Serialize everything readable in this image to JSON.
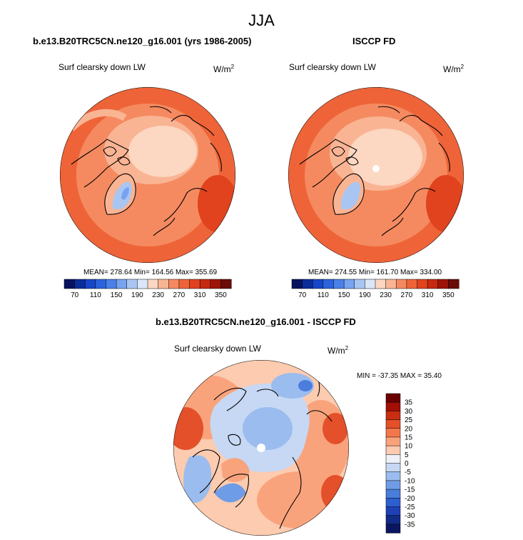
{
  "figure_title": "JJA",
  "panels": [
    {
      "title": "b.e13.B20TRC5CN.ne120_g16.001 (yrs 1986-2005)",
      "variable": "Surf clearsky down LW",
      "units": "W/m",
      "units_exp": "2",
      "stats": "MEAN= 278.64  Min= 164.56  Max= 355.69",
      "colorbar_ticks": [
        "70",
        "110",
        "150",
        "190",
        "230",
        "270",
        "310",
        "350"
      ]
    },
    {
      "title": "ISCCP FD",
      "variable": "Surf clearsky down LW",
      "units": "W/m",
      "units_exp": "2",
      "stats": "MEAN= 274.55  Min= 161.70  Max= 334.00",
      "colorbar_ticks": [
        "70",
        "110",
        "150",
        "190",
        "230",
        "270",
        "310",
        "350"
      ]
    },
    {
      "title": "b.e13.B20TRC5CN.ne120_g16.001 - ISCCP FD",
      "variable": "Surf clearsky down LW",
      "units": "W/m",
      "units_exp": "2",
      "stats": "MIN = -37.35 MAX =  35.40",
      "colorbar_ticks": [
        "35",
        "30",
        "25",
        "20",
        "15",
        "10",
        "5",
        "0",
        "-5",
        "-10",
        "-15",
        "-20",
        "-25",
        "-30",
        "-35"
      ]
    }
  ],
  "chart_data": [
    {
      "type": "heatmap",
      "projection": "north polar stereographic",
      "title": "b.e13.B20TRC5CN.ne120_g16.001 (yrs 1986-2005)",
      "variable": "Surf clearsky down LW",
      "units": "W/m2",
      "mean": 278.64,
      "min": 164.56,
      "max": 355.69,
      "levels": [
        70,
        90,
        110,
        130,
        150,
        170,
        190,
        210,
        230,
        250,
        270,
        290,
        310,
        330,
        350
      ]
    },
    {
      "type": "heatmap",
      "projection": "north polar stereographic",
      "title": "ISCCP FD",
      "variable": "Surf clearsky down LW",
      "units": "W/m2",
      "mean": 274.55,
      "min": 161.7,
      "max": 334.0,
      "levels": [
        70,
        90,
        110,
        130,
        150,
        170,
        190,
        210,
        230,
        250,
        270,
        290,
        310,
        330,
        350
      ]
    },
    {
      "type": "heatmap",
      "projection": "north polar stereographic",
      "title": "b.e13.B20TRC5CN.ne120_g16.001 - ISCCP FD",
      "variable": "Surf clearsky down LW",
      "units": "W/m2",
      "min": -37.35,
      "max": 35.4,
      "levels": [
        -35,
        -30,
        -25,
        -20,
        -15,
        -10,
        -5,
        0,
        5,
        10,
        15,
        20,
        25,
        30,
        35
      ]
    }
  ],
  "colors": {
    "abs_scale": [
      "#08135f",
      "#0a2d9a",
      "#1747c8",
      "#2c63dc",
      "#4a81e8",
      "#77a3ef",
      "#a9c6f3",
      "#dbe7f8",
      "#fcd7c2",
      "#f9b494",
      "#f58a60",
      "#ee6438",
      "#e0431d",
      "#c52a10",
      "#9d1308",
      "#6a0b05"
    ],
    "diff_scale": [
      "#6a0000",
      "#a10f06",
      "#c92e12",
      "#e4502a",
      "#f4774c",
      "#f9a37c",
      "#fccbb0",
      "#eef2f8",
      "#c6d8f3",
      "#9bbcee",
      "#6f9ce6",
      "#4a7ddc",
      "#2e5fcf",
      "#1f41b5",
      "#132b88",
      "#0a1660"
    ]
  }
}
